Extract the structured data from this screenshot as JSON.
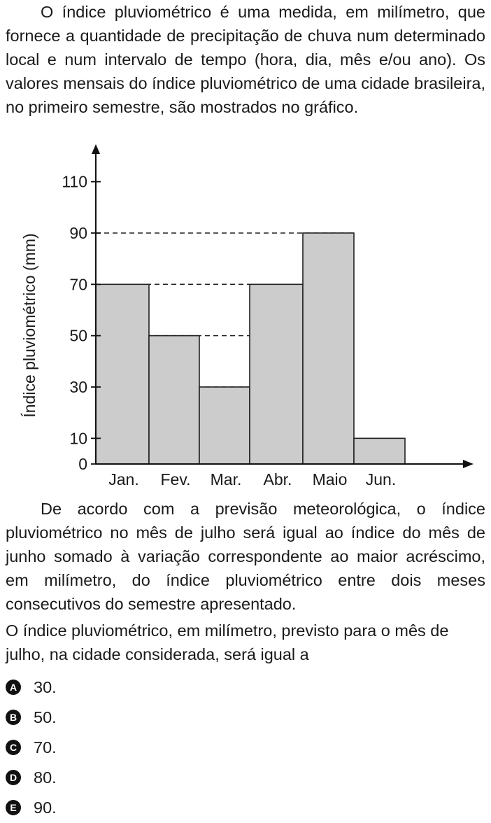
{
  "question": {
    "intro": "O índice pluviométrico é uma medida, em milímetro, que fornece a quantidade de precipitação de chuva num determinado local e num intervalo de tempo (hora, dia, mês e/ou ano). Os valores mensais do índice pluviométrico de uma cidade brasileira, no primeiro semestre, são mostrados no gráfico.",
    "context": "De acordo com a previsão meteorológica, o índice pluviométrico no mês de julho será igual ao índice do mês de junho somado à variação correspondente ao maior acréscimo, em milímetro, do índice pluviométrico entre dois meses consecutivos do semestre apresentado.",
    "prompt": "O índice pluviométrico, em milímetro, previsto para o mês de julho, na cidade considerada, será igual a"
  },
  "options": [
    {
      "letter": "A",
      "text": "30."
    },
    {
      "letter": "B",
      "text": "50."
    },
    {
      "letter": "C",
      "text": "70."
    },
    {
      "letter": "D",
      "text": "80."
    },
    {
      "letter": "E",
      "text": "90."
    }
  ],
  "chart_data": {
    "type": "bar",
    "categories": [
      "Jan.",
      "Fev.",
      "Mar.",
      "Abr.",
      "Maio",
      "Jun."
    ],
    "values": [
      70,
      50,
      30,
      70,
      90,
      10
    ],
    "ylabel": "Índice pluviométrico (mm)",
    "xlabel": "",
    "yticks": [
      0,
      10,
      30,
      50,
      70,
      90,
      110
    ],
    "ylim": [
      0,
      110
    ],
    "bar_color": "#cccccc",
    "dashed_gridlines": [
      10,
      30,
      50,
      70,
      90
    ]
  }
}
